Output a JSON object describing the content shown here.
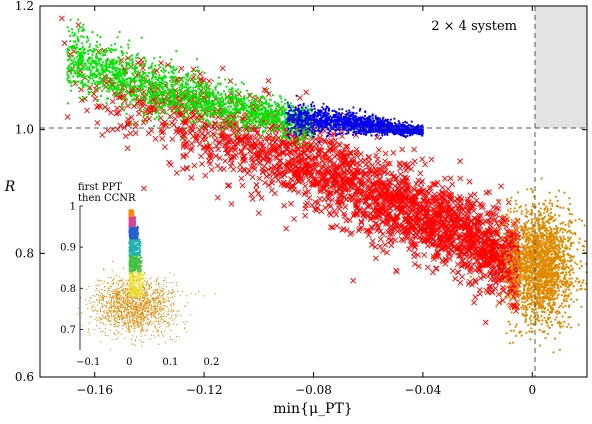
{
  "chart_data": [
    {
      "type": "scatter",
      "title": "",
      "annotation": "2 × 4 system",
      "xlabel": "min{μ_PT}",
      "ylabel": "R",
      "xlim": [
        -0.18,
        0.02
      ],
      "ylim": [
        0.6,
        1.2
      ],
      "x_ticks": [
        -0.16,
        -0.12,
        -0.08,
        -0.04,
        0
      ],
      "x_tick_labels": [
        "−0.16",
        "−0.12",
        "−0.08",
        "−0.04",
        "0"
      ],
      "y_ticks": [
        0.6,
        0.8,
        1.0,
        1.2
      ],
      "y_tick_labels": [
        "0.6",
        "0.8",
        "1.0",
        "1.2"
      ],
      "reference_lines": {
        "y": 1.0,
        "x": 0
      },
      "shaded_region": {
        "x": [
          0,
          0.02
        ],
        "y": [
          1.0,
          1.2
        ],
        "color": "#e3e3e3"
      },
      "series": [
        {
          "marker": "cross",
          "color": "#ff0000",
          "trend": [
            [
              -0.17,
              1.1
            ],
            [
              -0.12,
              1.01
            ],
            [
              -0.08,
              0.94
            ],
            [
              -0.04,
              0.86
            ],
            [
              -0.005,
              0.78
            ]
          ],
          "spread": 0.035,
          "outliers": [
            [
              -0.172,
              1.18
            ],
            [
              -0.171,
              1.14
            ],
            [
              -0.148,
              1.01
            ],
            [
              -0.148,
              0.97
            ],
            [
              -0.115,
              0.89
            ],
            [
              -0.13,
              0.93
            ],
            [
              -0.142,
              0.905
            ],
            [
              -0.09,
              0.84
            ],
            [
              -0.11,
              0.88
            ],
            [
              -0.1,
              0.865
            ]
          ]
        },
        {
          "marker": "dot",
          "color": "#00e600",
          "trend": [
            [
              -0.17,
              1.115
            ],
            [
              -0.14,
              1.07
            ],
            [
              -0.11,
              1.035
            ],
            [
              -0.08,
              1.005
            ]
          ],
          "spread": 0.022
        },
        {
          "marker": "dot",
          "color": "#0000ee",
          "trend": [
            [
              -0.09,
              1.02
            ],
            [
              -0.065,
              1.01
            ],
            [
              -0.04,
              0.998
            ]
          ],
          "spread": 0.012
        },
        {
          "marker": "dot",
          "color": "#e08a00",
          "center": [
            0.003,
            0.78
          ],
          "spread_x": 0.006,
          "spread_y": 0.045
        }
      ]
    },
    {
      "type": "scatter",
      "inset": true,
      "title": "first PPT\nthen CCNR",
      "title_lines": [
        "first PPT",
        "then CCNR"
      ],
      "xlim": [
        -0.12,
        0.25
      ],
      "ylim": [
        0.65,
        1.0
      ],
      "x_ticks": [
        -0.1,
        0,
        0.1,
        0.2
      ],
      "x_tick_labels": [
        "−0.1",
        "0",
        "0.1",
        "0.2"
      ],
      "y_ticks": [
        0.7,
        0.8,
        0.9,
        1.0
      ],
      "y_tick_labels": [
        "0.7",
        "0.8",
        "0.9",
        "1"
      ],
      "series": [
        {
          "marker": "dot",
          "color": "#e08a00",
          "center": [
            0.01,
            0.755
          ],
          "spread_x": 0.05,
          "spread_y": 0.035
        },
        {
          "marker": "dot",
          "color": "#e8e030",
          "band": [
            0.78,
            0.84
          ],
          "x_range": [
            0,
            0.035
          ]
        },
        {
          "marker": "dot",
          "color": "#40c040",
          "band": [
            0.84,
            0.88
          ],
          "x_range": [
            0,
            0.03
          ]
        },
        {
          "marker": "dot",
          "color": "#20b0b0",
          "band": [
            0.88,
            0.92
          ],
          "x_range": [
            0,
            0.028
          ]
        },
        {
          "marker": "dot",
          "color": "#2060d0",
          "band": [
            0.92,
            0.95
          ],
          "x_range": [
            0,
            0.022
          ]
        },
        {
          "marker": "dot",
          "color": "#e040a0",
          "band": [
            0.95,
            0.975
          ],
          "x_range": [
            0,
            0.015
          ]
        },
        {
          "marker": "dot",
          "color": "#ff8800",
          "band": [
            0.975,
            0.99
          ],
          "x_range": [
            0,
            0.01
          ]
        }
      ]
    }
  ]
}
